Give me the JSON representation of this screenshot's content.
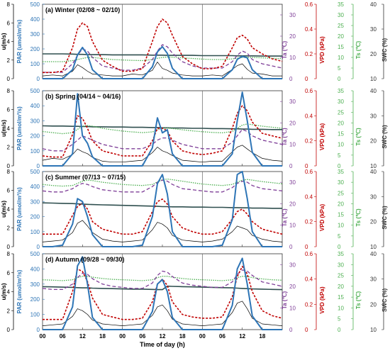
{
  "figure": {
    "xlabel": "Time of day (h)",
    "left_axes": {
      "u_label": "u(m/s)",
      "u_ticks": [
        "0",
        "2",
        "4",
        "6",
        "8"
      ],
      "u_ylim": [
        0,
        8
      ],
      "par_label": "PAR (umol/m²/s)",
      "par_ticks": [
        "0",
        "100",
        "200",
        "300",
        "400",
        "500"
      ],
      "par_ylim": [
        0,
        500
      ]
    },
    "right_axes": {
      "ta_label": "Ta (℃)",
      "ta_ticks": [
        "0",
        "10",
        "20",
        "30"
      ],
      "ta_ylim": [
        0,
        35
      ],
      "vpd_label": "VPD (kPa)",
      "vpd_ticks": [
        "0",
        "0.2",
        "0.4",
        "0.6"
      ],
      "vpd_ylim": [
        0,
        0.6
      ],
      "ts_label": "Ts (℃)",
      "ts_ticks": [
        "0",
        "5",
        "10",
        "15",
        "20",
        "25",
        "30",
        "35"
      ],
      "ts_ylim": [
        0,
        35
      ],
      "swc_label": "SWC (%)",
      "swc_ticks": [
        "10",
        "20",
        "30",
        "40"
      ],
      "swc_ylim": [
        10,
        40
      ]
    },
    "x_ticks": [
      "00",
      "06",
      "12",
      "18",
      "00",
      "06",
      "12",
      "18",
      "00",
      "06",
      "12",
      "18"
    ],
    "colors": {
      "u": "#000000",
      "par": "#2e75b6",
      "ta": "#7f3f98",
      "vpd": "#c00000",
      "ts": "#4caf50",
      "swc": "#2f4f4f"
    }
  },
  "chart_data": [
    {
      "type": "line",
      "title": "(a) Winter (02/08 ~ 02/10)",
      "x_unit": "hours from 00:00 of first day",
      "x": [
        0,
        3,
        6,
        9,
        10.5,
        12,
        13.5,
        15,
        18,
        21,
        24,
        27,
        30,
        33,
        34.5,
        36,
        37.5,
        39,
        42,
        45,
        48,
        51,
        54,
        57,
        58.5,
        60,
        61.5,
        63,
        66,
        69,
        72
      ],
      "series": [
        {
          "name": "u",
          "axis": "u",
          "values": [
            0.3,
            0.4,
            0.3,
            0.8,
            1.5,
            1.2,
            0.8,
            0.5,
            0.4,
            0.3,
            0.3,
            0.5,
            0.4,
            0.9,
            1.8,
            1.1,
            0.9,
            0.6,
            0.4,
            0.3,
            0.3,
            0.4,
            0.3,
            1.0,
            1.4,
            1.6,
            1.0,
            0.6,
            0.5,
            0.3,
            0.3
          ]
        },
        {
          "name": "PAR",
          "axis": "par",
          "values": [
            0,
            0,
            0,
            60,
            160,
            210,
            160,
            60,
            0,
            0,
            0,
            0,
            0,
            80,
            180,
            215,
            170,
            70,
            0,
            0,
            0,
            0,
            0,
            60,
            130,
            150,
            140,
            60,
            0,
            0,
            0
          ]
        },
        {
          "name": "Ta",
          "axis": "ta",
          "values": [
            3,
            3,
            3,
            7,
            11,
            14,
            13,
            10,
            6,
            5,
            4,
            4,
            5,
            9,
            13,
            16,
            15,
            12,
            8,
            6,
            5,
            5,
            5,
            8,
            11,
            13,
            12,
            9,
            7,
            6,
            5
          ]
        },
        {
          "name": "VPD",
          "axis": "vpd",
          "values": [
            0.05,
            0.05,
            0.06,
            0.25,
            0.4,
            0.45,
            0.42,
            0.3,
            0.15,
            0.1,
            0.06,
            0.06,
            0.08,
            0.3,
            0.42,
            0.48,
            0.45,
            0.35,
            0.18,
            0.12,
            0.08,
            0.08,
            0.1,
            0.25,
            0.33,
            0.35,
            0.32,
            0.25,
            0.2,
            0.16,
            0.14
          ]
        },
        {
          "name": "Ts",
          "axis": "ts",
          "values": [
            8,
            8,
            8,
            8.5,
            9,
            9.5,
            10,
            10,
            9.5,
            9,
            8.8,
            8.6,
            8.5,
            9,
            9.6,
            10,
            10.2,
            10.1,
            9.8,
            9.5,
            9.2,
            9,
            9,
            9.3,
            9.6,
            10,
            10.1,
            10,
            9.8,
            9.6,
            9.4
          ]
        },
        {
          "name": "SWC",
          "axis": "swc",
          "values": [
            20,
            20,
            20,
            19.9,
            19.8,
            19.8,
            19.7,
            19.7,
            19.7,
            19.6,
            19.6,
            19.6,
            19.6,
            19.5,
            19.5,
            19.5,
            19.4,
            19.4,
            19.4,
            19.4,
            19.3,
            19.3,
            19.3,
            19.3,
            19.2,
            19.2,
            19.2,
            19.2,
            19.1,
            19.1,
            19.1
          ]
        }
      ]
    },
    {
      "type": "line",
      "title": "(b) Spring (04/14 ~ 04/16)",
      "x_unit": "hours from 00:00 of first day",
      "x": [
        0,
        3,
        6,
        9,
        10.5,
        12,
        13.5,
        15,
        18,
        21,
        24,
        27,
        30,
        33,
        34.5,
        36,
        37.5,
        39,
        42,
        45,
        48,
        51,
        54,
        57,
        58.5,
        60,
        61.5,
        63,
        66,
        69,
        72
      ],
      "series": [
        {
          "name": "u",
          "axis": "u",
          "values": [
            0.6,
            0.8,
            0.7,
            1.2,
            1.8,
            1.5,
            1.3,
            0.9,
            0.5,
            0.4,
            0.4,
            0.5,
            0.6,
            1.4,
            2.0,
            1.6,
            1.4,
            1.1,
            0.6,
            0.5,
            0.4,
            0.5,
            0.5,
            1.5,
            2.0,
            2.2,
            1.8,
            1.4,
            0.8,
            0.6,
            0.5
          ]
        },
        {
          "name": "PAR",
          "axis": "par",
          "values": [
            0,
            0,
            0,
            80,
            480,
            200,
            150,
            60,
            0,
            0,
            0,
            0,
            0,
            120,
            320,
            220,
            240,
            80,
            0,
            0,
            0,
            0,
            0,
            80,
            300,
            490,
            300,
            90,
            0,
            0,
            0
          ]
        },
        {
          "name": "Ta",
          "axis": "ta",
          "values": [
            8,
            7,
            7,
            10,
            12,
            14,
            13,
            12,
            10,
            9,
            8,
            8,
            8,
            10,
            12,
            13,
            13,
            12,
            10,
            9,
            8,
            8,
            8,
            11,
            14,
            17,
            16,
            14,
            12,
            11,
            10
          ]
        },
        {
          "name": "VPD",
          "axis": "vpd",
          "values": [
            0.08,
            0.07,
            0.07,
            0.25,
            0.4,
            0.38,
            0.3,
            0.2,
            0.12,
            0.1,
            0.08,
            0.08,
            0.08,
            0.2,
            0.3,
            0.3,
            0.28,
            0.2,
            0.12,
            0.1,
            0.09,
            0.1,
            0.12,
            0.3,
            0.42,
            0.48,
            0.44,
            0.35,
            0.26,
            0.24,
            0.22
          ]
        },
        {
          "name": "Ts",
          "axis": "ts",
          "values": [
            16,
            15.5,
            15,
            15.5,
            17,
            18.5,
            18.8,
            18.5,
            17.5,
            16.8,
            16.2,
            15.8,
            15.5,
            15.8,
            16.8,
            17.5,
            17.6,
            17.4,
            16.8,
            16.3,
            15.9,
            15.6,
            15.4,
            16,
            17.5,
            19,
            19.5,
            19.2,
            18.5,
            18,
            17.5
          ]
        },
        {
          "name": "SWC",
          "axis": "swc",
          "values": [
            26,
            25.9,
            25.9,
            25.8,
            25.8,
            25.7,
            25.7,
            25.6,
            25.6,
            25.5,
            25.5,
            25.4,
            25.4,
            25.3,
            25.3,
            25.2,
            25.2,
            25.1,
            25.1,
            25,
            25,
            24.9,
            24.9,
            24.8,
            24.8,
            24.7,
            24.7,
            24.6,
            24.6,
            24.5,
            24.5
          ]
        }
      ]
    },
    {
      "type": "line",
      "title": "(c) Summer (07/13 ~ 07/15)",
      "x_unit": "hours from 00:00 of first day",
      "x": [
        0,
        3,
        6,
        9,
        10.5,
        12,
        13.5,
        15,
        18,
        21,
        24,
        27,
        30,
        33,
        34.5,
        36,
        37.5,
        39,
        42,
        45,
        48,
        51,
        54,
        57,
        58.5,
        60,
        61.5,
        63,
        66,
        69,
        72
      ],
      "series": [
        {
          "name": "u",
          "axis": "u",
          "values": [
            0.5,
            0.6,
            0.7,
            1.5,
            2.5,
            2.8,
            2.2,
            1.5,
            0.8,
            0.6,
            0.5,
            0.6,
            0.7,
            1.8,
            2.6,
            2.4,
            2.0,
            1.2,
            0.7,
            0.6,
            0.5,
            0.6,
            0.8,
            1.6,
            2.2,
            2.0,
            1.8,
            1.2,
            0.8,
            0.6,
            0.5
          ]
        },
        {
          "name": "PAR",
          "axis": "par",
          "values": [
            0,
            0,
            10,
            150,
            320,
            300,
            200,
            80,
            0,
            0,
            0,
            0,
            10,
            200,
            420,
            480,
            350,
            100,
            0,
            0,
            0,
            0,
            10,
            180,
            480,
            500,
            320,
            100,
            0,
            0,
            0
          ]
        },
        {
          "name": "Ta",
          "axis": "ta",
          "values": [
            26,
            25.5,
            25.5,
            27,
            28.5,
            29.5,
            29,
            28,
            26.5,
            26,
            25.5,
            25.5,
            25.5,
            28,
            30,
            31,
            30.5,
            29,
            27,
            26.5,
            26,
            25.5,
            25.5,
            27.5,
            29.5,
            30.5,
            30,
            28.5,
            27,
            26.5,
            26
          ]
        },
        {
          "name": "VPD",
          "axis": "vpd",
          "values": [
            0.1,
            0.1,
            0.1,
            0.25,
            0.32,
            0.35,
            0.3,
            0.2,
            0.14,
            0.12,
            0.1,
            0.1,
            0.12,
            0.28,
            0.36,
            0.38,
            0.34,
            0.24,
            0.15,
            0.12,
            0.1,
            0.1,
            0.12,
            0.22,
            0.28,
            0.3,
            0.26,
            0.2,
            0.14,
            0.12,
            0.1
          ]
        },
        {
          "name": "Ts",
          "axis": "ts",
          "values": [
            29,
            28.5,
            28.2,
            28.5,
            29.5,
            30.5,
            31,
            30.8,
            30,
            29.5,
            29,
            28.7,
            28.5,
            29,
            30.2,
            31.2,
            31.5,
            31.2,
            30.5,
            29.8,
            29.2,
            28.8,
            28.5,
            29,
            30,
            31,
            31.3,
            31,
            30.3,
            29.8,
            29.3
          ]
        },
        {
          "name": "SWC",
          "axis": "swc",
          "values": [
            27.5,
            27.4,
            27.3,
            27.2,
            27.1,
            27,
            26.9,
            26.8,
            26.7,
            26.6,
            26.5,
            26.4,
            26.3,
            26.2,
            26.1,
            26,
            26,
            25.9,
            25.9,
            25.8,
            25.8,
            25.7,
            25.7,
            25.6,
            25.6,
            25.5,
            25.5,
            25.4,
            25.4,
            25.3,
            25.3
          ]
        }
      ]
    },
    {
      "type": "line",
      "title": "(d) Autumn (09/28 ~ 09/30)",
      "x_unit": "hours from 00:00 of first day",
      "x": [
        0,
        3,
        6,
        9,
        10.5,
        12,
        13.5,
        15,
        18,
        21,
        24,
        27,
        30,
        33,
        34.5,
        36,
        37.5,
        39,
        42,
        45,
        48,
        51,
        54,
        57,
        58.5,
        60,
        61.5,
        63,
        66,
        69,
        72
      ],
      "series": [
        {
          "name": "u",
          "axis": "u",
          "values": [
            0.4,
            0.5,
            0.6,
            1.4,
            2.2,
            2.0,
            1.6,
            1.0,
            0.6,
            0.5,
            0.4,
            0.5,
            0.6,
            1.5,
            2.4,
            2.6,
            2.0,
            1.1,
            0.6,
            0.5,
            0.4,
            0.5,
            0.6,
            1.8,
            2.8,
            3.0,
            2.2,
            1.2,
            0.6,
            0.5,
            0.4
          ]
        },
        {
          "name": "PAR",
          "axis": "par",
          "values": [
            0,
            0,
            0,
            150,
            420,
            480,
            300,
            80,
            0,
            0,
            0,
            0,
            0,
            120,
            300,
            330,
            250,
            80,
            0,
            0,
            0,
            0,
            0,
            160,
            400,
            470,
            300,
            90,
            0,
            0,
            0
          ]
        },
        {
          "name": "Ta",
          "axis": "ta",
          "values": [
            19,
            18.5,
            18.5,
            21,
            24,
            26,
            25.5,
            23.5,
            21,
            20,
            19.5,
            19,
            19,
            21.5,
            25,
            27,
            26.5,
            24.5,
            21.5,
            20.5,
            20,
            19.5,
            19.5,
            22,
            25.5,
            27.5,
            27,
            25,
            22,
            21,
            20
          ]
        },
        {
          "name": "VPD",
          "axis": "vpd",
          "values": [
            0.08,
            0.08,
            0.08,
            0.3,
            0.48,
            0.46,
            0.38,
            0.25,
            0.12,
            0.1,
            0.08,
            0.08,
            0.09,
            0.22,
            0.36,
            0.4,
            0.35,
            0.22,
            0.12,
            0.1,
            0.09,
            0.09,
            0.1,
            0.26,
            0.42,
            0.5,
            0.44,
            0.3,
            0.15,
            0.11,
            0.09
          ]
        },
        {
          "name": "Ts",
          "axis": "ts",
          "values": [
            23,
            22.8,
            22.6,
            23,
            24,
            24.6,
            24.6,
            24.2,
            23.6,
            23.2,
            23,
            22.8,
            22.6,
            23,
            24,
            24.6,
            24.6,
            24.2,
            23.6,
            23.2,
            23,
            22.8,
            22.6,
            23,
            24,
            24.6,
            24.5,
            24,
            23.4,
            23,
            22.8
          ]
        },
        {
          "name": "SWC",
          "axis": "swc",
          "values": [
            27,
            26.9,
            26.8,
            26.7,
            26.6,
            26.5,
            26.5,
            26.4,
            26.3,
            26.2,
            26.1,
            26,
            26,
            25.9,
            25.8,
            25.8,
            27.2,
            27.1,
            27,
            26.9,
            26.8,
            26.7,
            26.6,
            26.5,
            26.4,
            26.3,
            26.2,
            26.1,
            26,
            25.9,
            25.8
          ]
        }
      ]
    }
  ]
}
